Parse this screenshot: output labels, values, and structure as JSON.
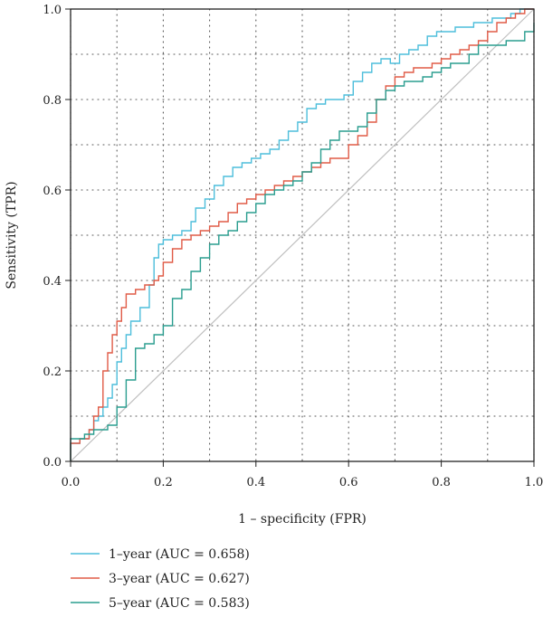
{
  "chart_data": {
    "type": "line",
    "title": "",
    "xlabel": "1 – specificity (FPR)",
    "ylabel": "Sensitivity (TPR)",
    "xlim": [
      0,
      1
    ],
    "ylim": [
      0,
      1
    ],
    "xticks": [
      "0.0",
      "0.2",
      "0.4",
      "0.6",
      "0.8",
      "1.0"
    ],
    "yticks": [
      "0.0",
      "0.2",
      "0.4",
      "0.6",
      "0.8",
      "1.0"
    ],
    "grid": "dotted",
    "legend_position": "bottom-left",
    "reference_line": {
      "x": [
        0,
        1
      ],
      "y": [
        0,
        1
      ],
      "color": "#c0c0c0"
    },
    "series": [
      {
        "name": "1–year (AUC = 0.658)",
        "color": "#4dbedb",
        "x": [
          0,
          0,
          0.02,
          0.04,
          0.05,
          0.06,
          0.07,
          0.08,
          0.09,
          0.1,
          0.11,
          0.12,
          0.13,
          0.15,
          0.17,
          0.18,
          0.19,
          0.2,
          0.22,
          0.24,
          0.26,
          0.27,
          0.29,
          0.31,
          0.33,
          0.35,
          0.37,
          0.39,
          0.41,
          0.43,
          0.45,
          0.47,
          0.49,
          0.51,
          0.53,
          0.55,
          0.57,
          0.59,
          0.61,
          0.63,
          0.65,
          0.67,
          0.69,
          0.71,
          0.73,
          0.75,
          0.77,
          0.79,
          0.81,
          0.83,
          0.85,
          0.87,
          0.89,
          0.91,
          0.93,
          0.95,
          0.97,
          1
        ],
        "y": [
          0,
          0.04,
          0.05,
          0.07,
          0.09,
          0.1,
          0.12,
          0.14,
          0.17,
          0.22,
          0.25,
          0.28,
          0.31,
          0.34,
          0.39,
          0.45,
          0.48,
          0.49,
          0.5,
          0.51,
          0.53,
          0.56,
          0.58,
          0.61,
          0.63,
          0.65,
          0.66,
          0.67,
          0.68,
          0.69,
          0.71,
          0.73,
          0.75,
          0.78,
          0.79,
          0.8,
          0.8,
          0.81,
          0.84,
          0.86,
          0.88,
          0.89,
          0.88,
          0.9,
          0.91,
          0.92,
          0.94,
          0.95,
          0.95,
          0.96,
          0.96,
          0.97,
          0.97,
          0.98,
          0.98,
          0.99,
          1.0,
          1.0
        ]
      },
      {
        "name": "3–year (AUC = 0.627)",
        "color": "#e05b47",
        "x": [
          0,
          0,
          0.02,
          0.04,
          0.05,
          0.06,
          0.07,
          0.08,
          0.09,
          0.1,
          0.11,
          0.12,
          0.14,
          0.16,
          0.18,
          0.19,
          0.2,
          0.22,
          0.24,
          0.26,
          0.28,
          0.3,
          0.32,
          0.34,
          0.36,
          0.38,
          0.4,
          0.42,
          0.44,
          0.46,
          0.48,
          0.5,
          0.52,
          0.54,
          0.56,
          0.58,
          0.6,
          0.62,
          0.64,
          0.66,
          0.68,
          0.7,
          0.72,
          0.74,
          0.76,
          0.78,
          0.8,
          0.82,
          0.84,
          0.86,
          0.88,
          0.9,
          0.92,
          0.94,
          0.96,
          0.98,
          1
        ],
        "y": [
          0,
          0.04,
          0.05,
          0.07,
          0.1,
          0.12,
          0.2,
          0.24,
          0.28,
          0.31,
          0.34,
          0.37,
          0.38,
          0.39,
          0.4,
          0.41,
          0.44,
          0.47,
          0.49,
          0.5,
          0.51,
          0.52,
          0.53,
          0.55,
          0.57,
          0.58,
          0.59,
          0.6,
          0.61,
          0.62,
          0.63,
          0.64,
          0.65,
          0.66,
          0.67,
          0.67,
          0.7,
          0.72,
          0.75,
          0.8,
          0.83,
          0.85,
          0.86,
          0.87,
          0.87,
          0.88,
          0.89,
          0.9,
          0.91,
          0.92,
          0.93,
          0.95,
          0.97,
          0.98,
          0.99,
          1.0,
          1.0
        ]
      },
      {
        "name": "5–year (AUC = 0.583)",
        "color": "#2a9d8f",
        "x": [
          0,
          0,
          0.03,
          0.05,
          0.08,
          0.1,
          0.12,
          0.14,
          0.16,
          0.18,
          0.2,
          0.22,
          0.24,
          0.26,
          0.28,
          0.3,
          0.32,
          0.34,
          0.36,
          0.38,
          0.4,
          0.42,
          0.44,
          0.46,
          0.48,
          0.5,
          0.52,
          0.54,
          0.56,
          0.58,
          0.6,
          0.62,
          0.64,
          0.66,
          0.68,
          0.7,
          0.72,
          0.74,
          0.76,
          0.78,
          0.8,
          0.82,
          0.84,
          0.86,
          0.88,
          0.9,
          0.92,
          0.94,
          0.96,
          0.98,
          1
        ],
        "y": [
          0,
          0.05,
          0.06,
          0.07,
          0.08,
          0.12,
          0.18,
          0.25,
          0.26,
          0.28,
          0.3,
          0.36,
          0.38,
          0.42,
          0.45,
          0.48,
          0.5,
          0.51,
          0.53,
          0.55,
          0.57,
          0.59,
          0.6,
          0.61,
          0.62,
          0.64,
          0.66,
          0.69,
          0.71,
          0.73,
          0.73,
          0.74,
          0.77,
          0.8,
          0.82,
          0.83,
          0.84,
          0.84,
          0.85,
          0.86,
          0.87,
          0.88,
          0.88,
          0.9,
          0.92,
          0.92,
          0.92,
          0.93,
          0.93,
          0.95,
          0.97
        ]
      }
    ]
  }
}
